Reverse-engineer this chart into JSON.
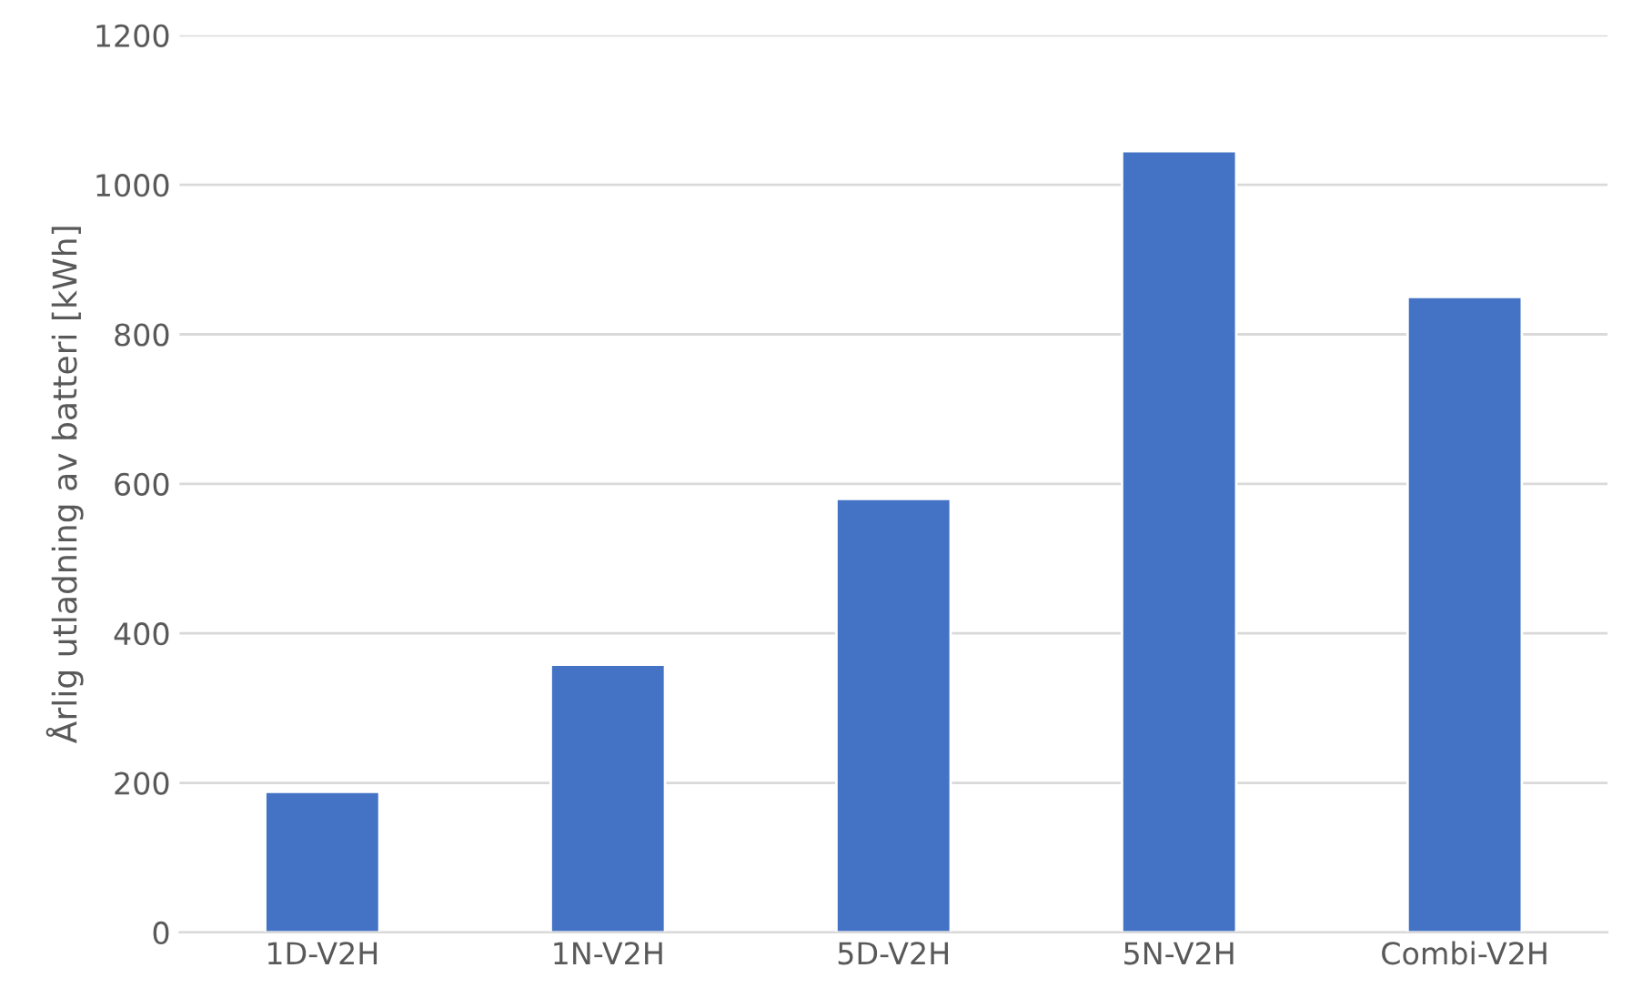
{
  "chart_data": {
    "type": "bar",
    "ylabel": "Årlig utladning av batteri [kWh]",
    "categories": [
      "1D-V2H",
      "1N-V2H",
      "5D-V2H",
      "5N-V2H",
      "Combi-V2H"
    ],
    "values": [
      188,
      358,
      580,
      1045,
      850
    ],
    "color": "#4472c4",
    "ylim": [
      0,
      1200
    ],
    "yticks": [
      0,
      200,
      400,
      600,
      800,
      1000,
      1200
    ],
    "grid": "y"
  }
}
